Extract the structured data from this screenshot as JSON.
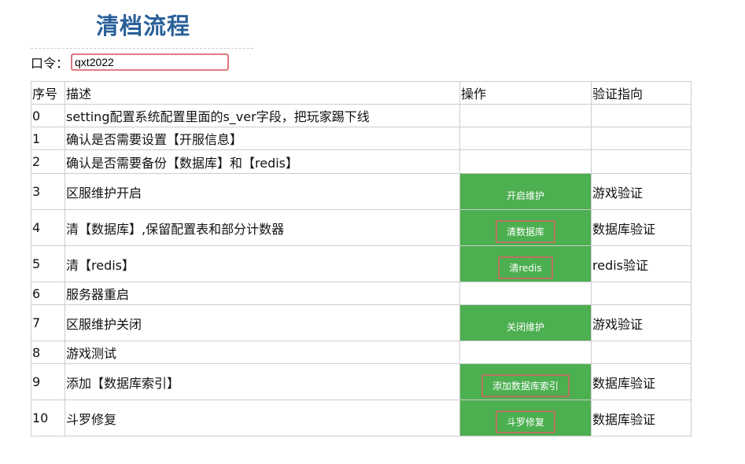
{
  "title": "清档流程",
  "password": {
    "label": "口令：",
    "value": "qxt2022"
  },
  "table": {
    "headers": [
      "序号",
      "描述",
      "操作",
      "验证指向"
    ],
    "rows": [
      {
        "no": "0",
        "desc": "setting配置系统配置里面的s_ver字段，把玩家踢下线",
        "action": null,
        "verify": ""
      },
      {
        "no": "1",
        "desc": "确认是否需要设置【开服信息】",
        "action": null,
        "verify": ""
      },
      {
        "no": "2",
        "desc": "确认是否需要备份【数据库】和【redis】",
        "action": null,
        "verify": ""
      },
      {
        "no": "3",
        "desc": "区服维护开启",
        "action": "开启维护",
        "verify": "游戏验证"
      },
      {
        "no": "4",
        "desc": "清【数据库】,保留配置表和部分计数器",
        "action": "清数据库",
        "verify": "数据库验证"
      },
      {
        "no": "5",
        "desc": "清【redis】",
        "action": "清redis",
        "verify": "redis验证"
      },
      {
        "no": "6",
        "desc": "服务器重启",
        "action": null,
        "verify": ""
      },
      {
        "no": "7",
        "desc": "区服维护关闭",
        "action": "关闭维护",
        "verify": "游戏验证"
      },
      {
        "no": "8",
        "desc": "游戏测试",
        "action": null,
        "verify": ""
      },
      {
        "no": "9",
        "desc": "添加【数据库索引】",
        "action": "添加数据库索引",
        "verify": "数据库验证"
      },
      {
        "no": "10",
        "desc": "斗罗修复",
        "action": "斗罗修复",
        "verify": "数据库验证"
      }
    ]
  },
  "colors": {
    "title": "#2a6099",
    "button_bg": "#4caf50"
  }
}
